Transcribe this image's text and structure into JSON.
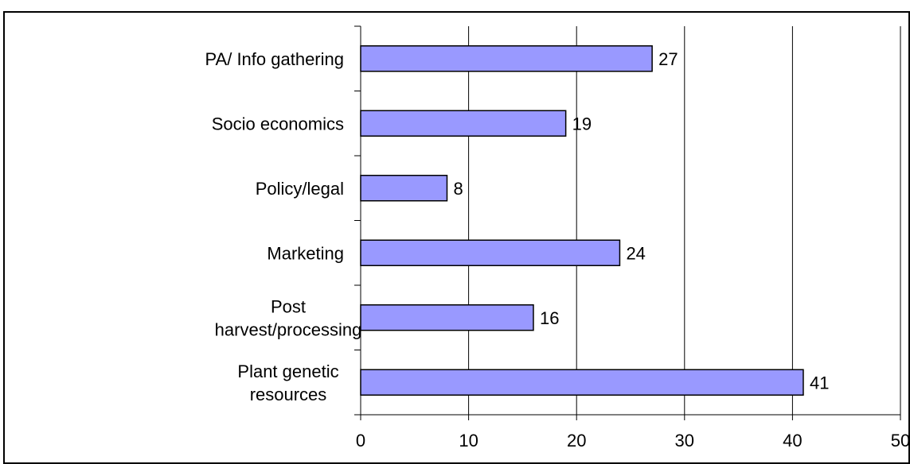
{
  "chart_data": {
    "type": "bar",
    "orientation": "horizontal",
    "categories": [
      "PA/ Info gathering",
      "Socio economics",
      "Policy/legal",
      "Marketing",
      "Post harvest/processing",
      "Plant genetic resources"
    ],
    "category_lines": [
      [
        "PA/ Info gathering"
      ],
      [
        "Socio economics"
      ],
      [
        "Policy/legal"
      ],
      [
        "Marketing"
      ],
      [
        "Post",
        "harvest/processing"
      ],
      [
        "Plant genetic",
        "resources"
      ]
    ],
    "values": [
      27,
      19,
      8,
      24,
      16,
      41
    ],
    "data_labels": [
      "27",
      "19",
      "8",
      "24",
      "16",
      "41"
    ],
    "xlim": [
      0,
      50
    ],
    "xticks": [
      0,
      10,
      20,
      30,
      40,
      50
    ],
    "xtick_labels": [
      "0",
      "10",
      "20",
      "30",
      "40",
      "50"
    ],
    "grid": "vertical",
    "colors": {
      "bar_fill": "#9999ff",
      "bar_stroke": "#000000",
      "grid": "#000000"
    }
  }
}
